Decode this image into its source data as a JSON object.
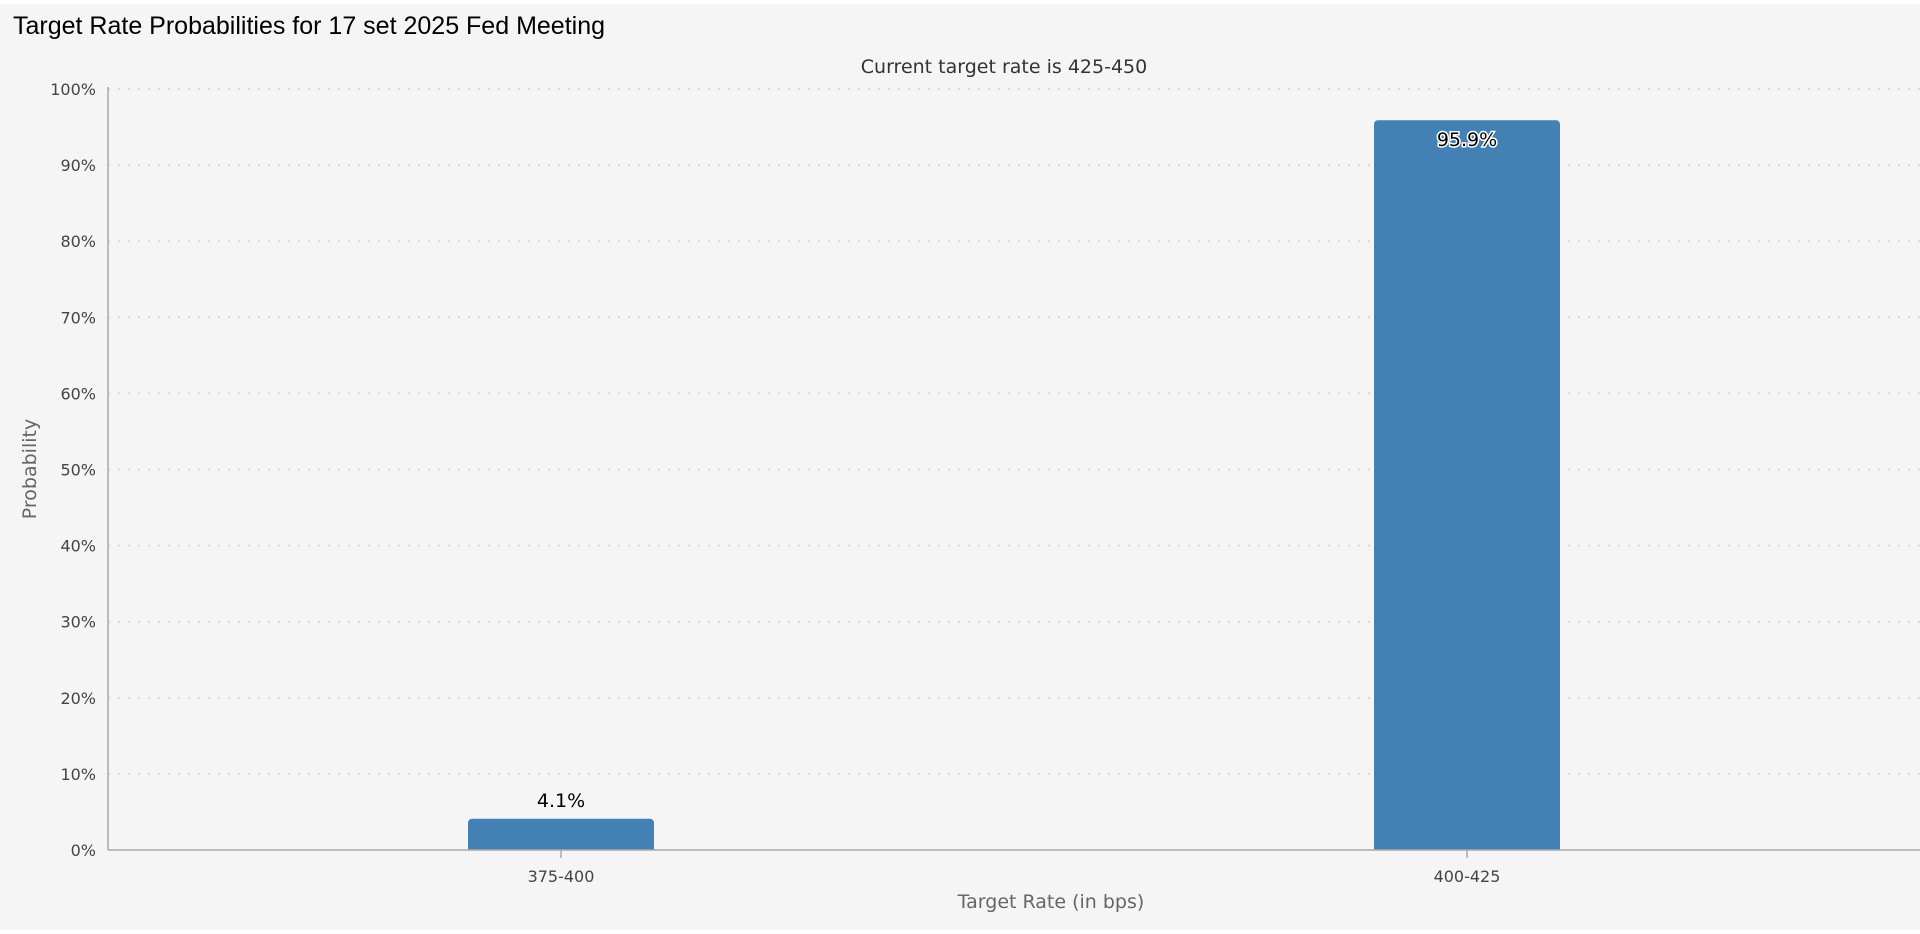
{
  "page": {
    "title": "Target Rate Probabilities for 17 set 2025 Fed Meeting"
  },
  "chart_data": {
    "type": "bar",
    "title": "",
    "subtitle": "Current target rate is 425-450",
    "categories": [
      "375-400",
      "400-425"
    ],
    "values": [
      4.1,
      95.9
    ],
    "data_labels": [
      "4.1%",
      "95.9%"
    ],
    "xlabel": "Target Rate (in bps)",
    "ylabel": "Probability",
    "ylim": [
      0,
      100
    ],
    "yticks": [
      0,
      10,
      20,
      30,
      40,
      50,
      60,
      70,
      80,
      90,
      100
    ],
    "ytick_labels": [
      "0%",
      "10%",
      "20%",
      "30%",
      "40%",
      "50%",
      "60%",
      "70%",
      "80%",
      "90%",
      "100%"
    ],
    "grid": true,
    "legend": "none",
    "colors": {
      "bar": "#4380b4",
      "grid": "#d9d9d9",
      "axis": "#aaaaaa",
      "background": "#f5f5f5"
    }
  }
}
